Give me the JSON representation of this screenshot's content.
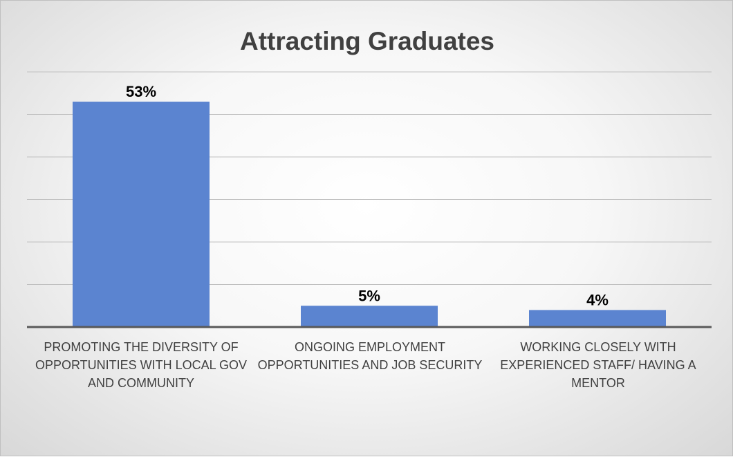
{
  "chart_data": {
    "type": "bar",
    "title": "Attracting Graduates",
    "categories": [
      "PROMOTING THE DIVERSITY OF OPPORTUNITIES WITH LOCAL GOV AND COMMUNITY",
      "ONGOING EMPLOYMENT OPPORTUNITIES AND JOB SECURITY",
      "WORKING CLOSELY WITH EXPERIENCED STAFF/ HAVING A MENTOR"
    ],
    "values": [
      53,
      5,
      4
    ],
    "data_labels": [
      "53%",
      "5%",
      "4%"
    ],
    "value_unit": "%",
    "xlabel": "",
    "ylabel": "",
    "ylim": [
      0,
      60
    ],
    "grid": true,
    "legend": "none",
    "bar_color": "#5b84d0",
    "gridline_color": "#c0c0c0",
    "axis_color": "#595959",
    "text_color": "#404040"
  }
}
